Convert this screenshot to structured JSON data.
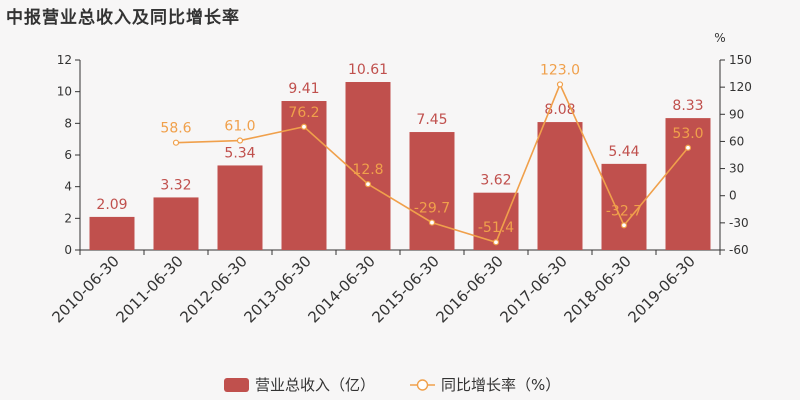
{
  "chart_data": {
    "type": "bar",
    "title": "中报营业总收入及同比增长率",
    "y2_unit": "%",
    "categories": [
      "2010-06-30",
      "2011-06-30",
      "2012-06-30",
      "2013-06-30",
      "2014-06-30",
      "2015-06-30",
      "2016-06-30",
      "2017-06-30",
      "2018-06-30",
      "2019-06-30"
    ],
    "series": [
      {
        "name": "营业总收入（亿）",
        "type": "bar",
        "axis": "left",
        "color": "#c0504d",
        "values": [
          2.09,
          3.32,
          5.34,
          9.41,
          10.61,
          7.45,
          3.62,
          8.08,
          5.44,
          8.33
        ],
        "labels": [
          "2.09",
          "3.32",
          "5.34",
          "9.41",
          "10.61",
          "7.45",
          "3.62",
          "8.08",
          "5.44",
          "8.33"
        ]
      },
      {
        "name": "同比增长率（%）",
        "type": "line",
        "axis": "right",
        "color": "#f0a04b",
        "values": [
          null,
          58.6,
          61.0,
          76.2,
          12.8,
          -29.7,
          -51.4,
          123.0,
          -32.7,
          53.0
        ],
        "labels": [
          "",
          "58.6",
          "61.0",
          "76.2",
          "12.8",
          "-29.7",
          "-51.4",
          "123.0",
          "-32.7",
          "53.0"
        ]
      }
    ],
    "ylim": [
      0,
      12
    ],
    "yticks": [
      "0",
      "2",
      "4",
      "6",
      "8",
      "10",
      "12"
    ],
    "y2lim": [
      -60,
      150
    ],
    "y2ticks": [
      "-60",
      "-30",
      "0",
      "30",
      "60",
      "90",
      "120",
      "150"
    ],
    "legend_position": "bottom-center",
    "grid": false
  }
}
